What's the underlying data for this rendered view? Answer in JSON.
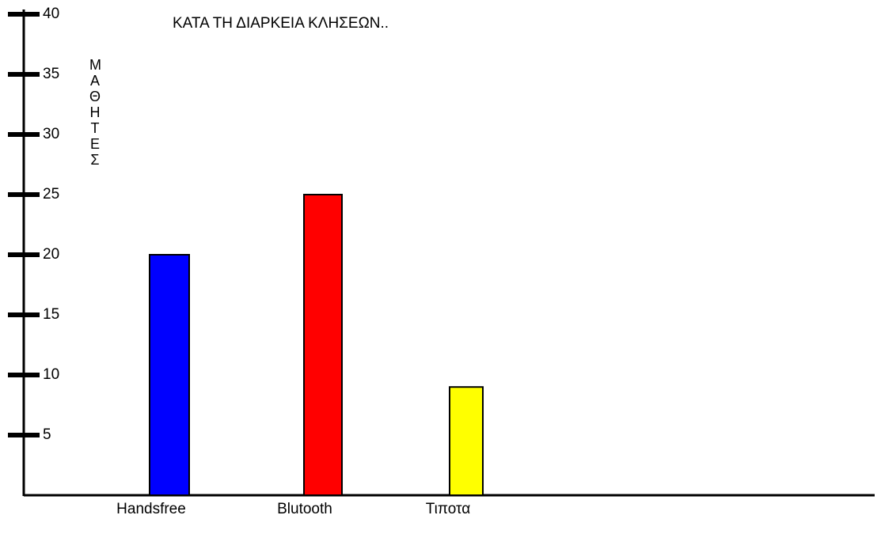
{
  "chart_data": {
    "type": "bar",
    "title": "ΚΑΤΑ ΤΗ ΔΙΑΡΚΕΙΑ ΚΛΗΣΕΩΝ..",
    "y_label": "ΜΑΘΗΤΕΣ",
    "categories": [
      "Handsfree",
      "Blutooth",
      "Τιποτα"
    ],
    "values": [
      20,
      25,
      9
    ],
    "colors": [
      "#0000ff",
      "#ff0000",
      "#ffff00"
    ],
    "ylim": [
      0,
      40
    ],
    "yticks": [
      5,
      10,
      15,
      20,
      25,
      30,
      35,
      40
    ],
    "grid": false
  }
}
